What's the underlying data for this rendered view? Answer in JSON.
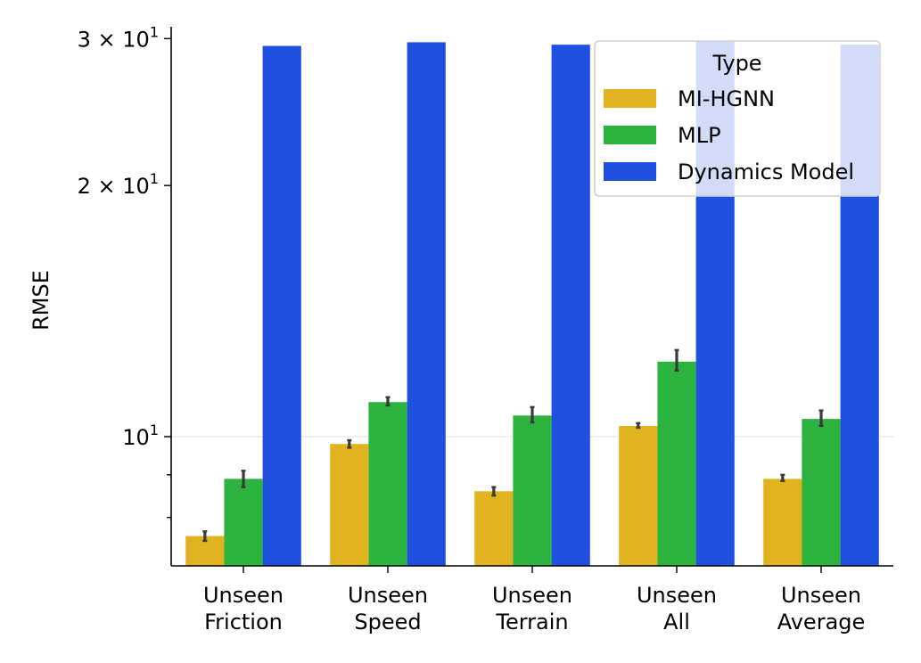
{
  "chart_data": {
    "type": "bar",
    "ylabel": "RMSE",
    "xlabel": "",
    "yscale": "log",
    "ylim": [
      7.0,
      31.0
    ],
    "grid": "y-major",
    "categories": [
      "Unseen\nFriction",
      "Unseen\nSpeed",
      "Unseen\nTerrain",
      "Unseen\nAll",
      "Unseen\nAverage"
    ],
    "series": [
      {
        "name": "MI-HGNN",
        "color": "#e2b320",
        "values": [
          7.6,
          9.8,
          8.6,
          10.3,
          8.9
        ],
        "err_low": [
          7.5,
          9.7,
          8.5,
          10.25,
          8.85
        ],
        "err_high": [
          7.7,
          9.9,
          8.7,
          10.38,
          9.0
        ]
      },
      {
        "name": "MLP",
        "color": "#2cb43e",
        "values": [
          8.9,
          11.0,
          10.6,
          12.3,
          10.5
        ],
        "err_low": [
          8.7,
          10.9,
          10.4,
          12.0,
          10.3
        ],
        "err_high": [
          9.1,
          11.15,
          10.85,
          12.7,
          10.75
        ]
      },
      {
        "name": "Dynamics Model",
        "color": "#2050e0",
        "values": [
          29.4,
          29.7,
          29.5,
          29.8,
          29.5
        ]
      }
    ],
    "yticks": [
      {
        "value": 10,
        "label": "10",
        "exp": "1"
      },
      {
        "value": 20,
        "label": "2 × 10",
        "exp": "1"
      },
      {
        "value": 30,
        "label": "3 × 10",
        "exp": "1"
      }
    ],
    "legend": {
      "title": "Type",
      "placement": "top-right",
      "entries": [
        "MI-HGNN",
        "MLP",
        "Dynamics Model"
      ]
    }
  }
}
